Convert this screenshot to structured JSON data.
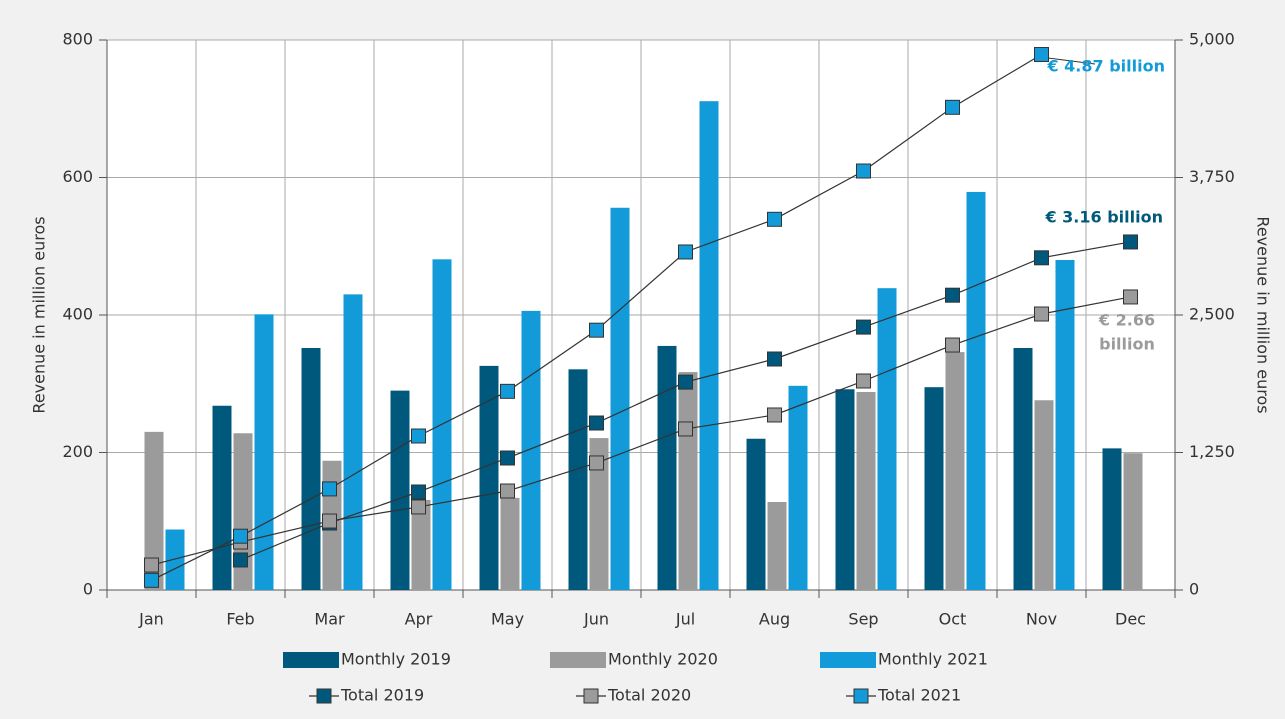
{
  "chart_data": {
    "type": "bar",
    "categories": [
      "Jan",
      "Feb",
      "Mar",
      "Apr",
      "May",
      "Jun",
      "Jul",
      "Aug",
      "Sep",
      "Oct",
      "Nov",
      "Dec"
    ],
    "ylabel": "Revenue in million euros",
    "y2label": "Revenue in million euros",
    "ylim": [
      0,
      800
    ],
    "yticks": [
      0,
      200,
      400,
      600,
      800
    ],
    "y2lim": [
      0,
      5000
    ],
    "y2ticks": [
      0,
      {
        "value": 1250,
        "label": "1,250"
      },
      {
        "value": 2500,
        "label": "2,500"
      },
      {
        "value": 3750,
        "label": "3,750"
      },
      {
        "value": 5000,
        "label": "5,000"
      }
    ],
    "grid": true,
    "legend": "bottom",
    "series": [
      {
        "name": "Monthly 2019",
        "color": "#00587c",
        "values": [
          null,
          268,
          352,
          290,
          326,
          321,
          355,
          220,
          292,
          295,
          352,
          206
        ]
      },
      {
        "name": "Monthly 2020",
        "color": "#9b9b9b",
        "values": [
          230,
          228,
          188,
          131,
          134,
          221,
          317,
          128,
          288,
          346,
          276,
          199
        ]
      },
      {
        "name": "Monthly 2021",
        "color": "#129bd8",
        "values": [
          88,
          401,
          430,
          481,
          406,
          556,
          711,
          297,
          439,
          579,
          480,
          null
        ]
      },
      {
        "name": "Total 2019",
        "type": "line",
        "axis": "y2",
        "color": "#00587c",
        "values": [
          null,
          273,
          609,
          891,
          1200,
          1518,
          1890,
          2100,
          2390,
          2680,
          3020,
          3164
        ]
      },
      {
        "name": "Total 2020",
        "type": "line",
        "axis": "y2",
        "color": "#9b9b9b",
        "values": [
          227,
          436,
          627,
          755,
          900,
          1155,
          1464,
          1591,
          1900,
          2227,
          2509,
          2664
        ]
      },
      {
        "name": "Total 2021",
        "type": "line",
        "axis": "y2",
        "color": "#129bd8",
        "values": [
          88,
          489,
          919,
          1400,
          1806,
          2362,
          3073,
          3370,
          3809,
          4388,
          4868,
          null
        ]
      }
    ],
    "annotations": [
      {
        "lines": [
          "€ 4.87 billion"
        ],
        "color": "#129bd8"
      },
      {
        "lines": [
          "€ 3.16 billion"
        ],
        "color": "#00587c"
      },
      {
        "lines": [
          "€ 2.66",
          "billion"
        ],
        "color": "#9b9b9b"
      }
    ]
  }
}
